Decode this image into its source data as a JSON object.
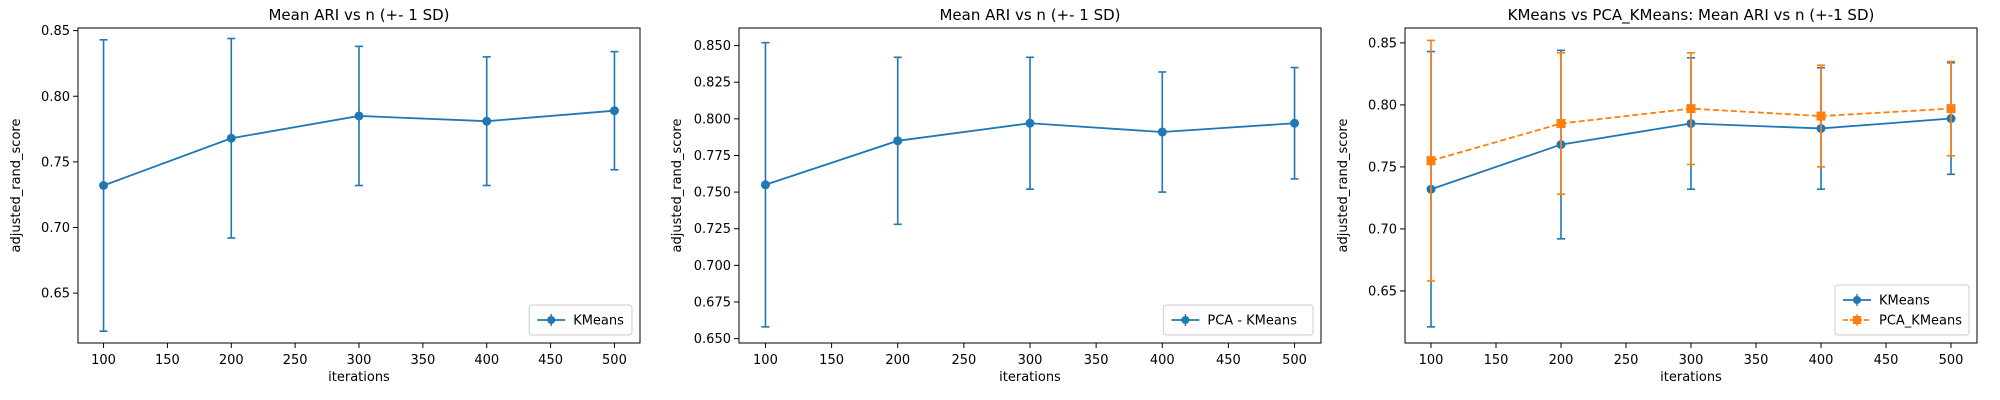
{
  "chart_data": [
    {
      "type": "line",
      "title": "Mean ARI vs n (+- 1 SD)",
      "xlabel": "iterations",
      "ylabel": "adjusted_rand_score",
      "xlim": [
        80,
        520
      ],
      "ylim": [
        0.612,
        0.852
      ],
      "xticks": [
        100,
        150,
        200,
        250,
        300,
        350,
        400,
        450,
        500
      ],
      "yticks": [
        0.65,
        0.7,
        0.75,
        0.8,
        0.85
      ],
      "ytick_decimals": 2,
      "grid": false,
      "legend_position": "lower-right",
      "series": [
        {
          "name": "KMeans",
          "color": "#1f77b4",
          "marker": "circle",
          "linestyle": "solid",
          "x": [
            100,
            200,
            300,
            400,
            500
          ],
          "y": [
            0.732,
            0.768,
            0.785,
            0.781,
            0.789
          ],
          "yerr": [
            0.111,
            0.076,
            0.053,
            0.049,
            0.045
          ]
        }
      ]
    },
    {
      "type": "line",
      "title": "Mean ARI vs n (+- 1 SD)",
      "xlabel": "iterations",
      "ylabel": "adjusted_rand_score",
      "xlim": [
        80,
        520
      ],
      "ylim": [
        0.647,
        0.862
      ],
      "xticks": [
        100,
        150,
        200,
        250,
        300,
        350,
        400,
        450,
        500
      ],
      "yticks": [
        0.65,
        0.675,
        0.7,
        0.725,
        0.75,
        0.775,
        0.8,
        0.825,
        0.85
      ],
      "ytick_decimals": 3,
      "grid": false,
      "legend_position": "lower-right",
      "series": [
        {
          "name": "PCA - KMeans",
          "color": "#1f77b4",
          "marker": "circle",
          "linestyle": "solid",
          "x": [
            100,
            200,
            300,
            400,
            500
          ],
          "y": [
            0.755,
            0.785,
            0.797,
            0.791,
            0.797
          ],
          "yerr": [
            0.097,
            0.057,
            0.045,
            0.041,
            0.038
          ]
        }
      ]
    },
    {
      "type": "line",
      "title": "KMeans vs PCA_KMeans: Mean ARI vs n (+-1 SD)",
      "xlabel": "iterations",
      "ylabel": "adjusted_rand_score",
      "xlim": [
        80,
        520
      ],
      "ylim": [
        0.608,
        0.862
      ],
      "xticks": [
        100,
        150,
        200,
        250,
        300,
        350,
        400,
        450,
        500
      ],
      "yticks": [
        0.65,
        0.7,
        0.75,
        0.8,
        0.85
      ],
      "ytick_decimals": 2,
      "grid": false,
      "legend_position": "lower-right",
      "series": [
        {
          "name": "KMeans",
          "color": "#1f77b4",
          "marker": "circle",
          "linestyle": "solid",
          "x": [
            100,
            200,
            300,
            400,
            500
          ],
          "y": [
            0.732,
            0.768,
            0.785,
            0.781,
            0.789
          ],
          "yerr": [
            0.111,
            0.076,
            0.053,
            0.049,
            0.045
          ]
        },
        {
          "name": "PCA_KMeans",
          "color": "#ff7f0e",
          "marker": "square",
          "linestyle": "dashed",
          "x": [
            100,
            200,
            300,
            400,
            500
          ],
          "y": [
            0.755,
            0.785,
            0.797,
            0.791,
            0.797
          ],
          "yerr": [
            0.097,
            0.057,
            0.045,
            0.041,
            0.038
          ]
        }
      ]
    }
  ]
}
